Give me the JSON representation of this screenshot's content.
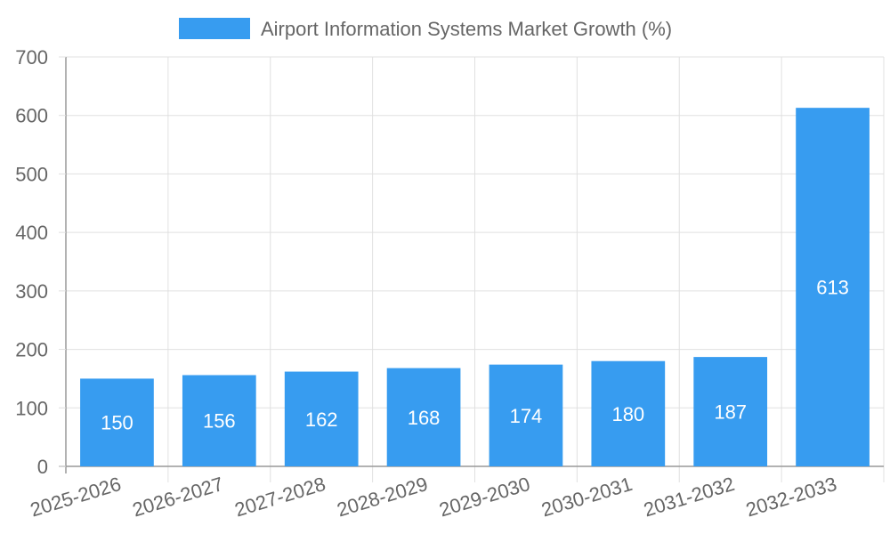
{
  "chart_data": {
    "type": "bar",
    "title": "",
    "legend": {
      "label": "Airport Information Systems Market Growth (%)",
      "position": "top-center"
    },
    "categories": [
      "2025-2026",
      "2026-2027",
      "2027-2028",
      "2028-2029",
      "2029-2030",
      "2030-2031",
      "2031-2032",
      "2032-2033"
    ],
    "series": [
      {
        "name": "Airport Information Systems Market Growth (%)",
        "values": [
          150,
          156,
          162,
          168,
          174,
          180,
          187,
          613
        ],
        "color": "#379cf0"
      }
    ],
    "xlabel": "",
    "ylabel": "",
    "ylim": [
      0,
      700
    ],
    "yticks": [
      0,
      100,
      200,
      300,
      400,
      500,
      600,
      700
    ],
    "grid": true,
    "show_value_labels": true
  },
  "colors": {
    "bar": "#379cf0",
    "grid": "#e0e0e0",
    "axis": "#999999",
    "text": "#666666",
    "value_label": "#ffffff"
  }
}
